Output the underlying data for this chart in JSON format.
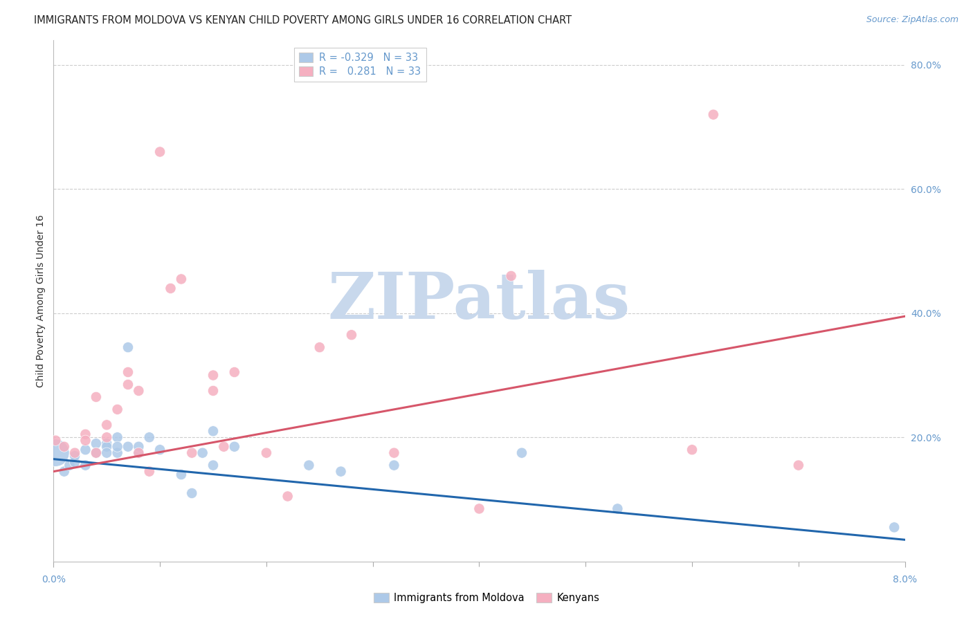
{
  "title": "IMMIGRANTS FROM MOLDOVA VS KENYAN CHILD POVERTY AMONG GIRLS UNDER 16 CORRELATION CHART",
  "source": "Source: ZipAtlas.com",
  "ylabel": "Child Poverty Among Girls Under 16",
  "xlim": [
    0,
    0.08
  ],
  "ylim": [
    0,
    0.84
  ],
  "blue_color": "#adc9e8",
  "pink_color": "#f5afc0",
  "line_blue": "#2166ac",
  "line_pink": "#d6566a",
  "background_color": "#ffffff",
  "grid_color": "#cccccc",
  "tick_color": "#6699cc",
  "blue_scatter_x": [
    0.0002,
    0.001,
    0.0015,
    0.002,
    0.002,
    0.003,
    0.003,
    0.004,
    0.004,
    0.005,
    0.005,
    0.005,
    0.006,
    0.006,
    0.006,
    0.007,
    0.007,
    0.008,
    0.008,
    0.009,
    0.01,
    0.012,
    0.013,
    0.014,
    0.015,
    0.015,
    0.017,
    0.024,
    0.027,
    0.032,
    0.044,
    0.053,
    0.079
  ],
  "blue_scatter_y": [
    0.175,
    0.145,
    0.155,
    0.16,
    0.17,
    0.18,
    0.155,
    0.19,
    0.175,
    0.19,
    0.185,
    0.175,
    0.2,
    0.175,
    0.185,
    0.185,
    0.345,
    0.175,
    0.185,
    0.2,
    0.18,
    0.14,
    0.11,
    0.175,
    0.155,
    0.21,
    0.185,
    0.155,
    0.145,
    0.155,
    0.175,
    0.085,
    0.055
  ],
  "blue_scatter_s": [
    800,
    120,
    120,
    120,
    120,
    120,
    120,
    120,
    120,
    120,
    120,
    120,
    120,
    120,
    120,
    120,
    120,
    120,
    120,
    120,
    120,
    120,
    120,
    120,
    120,
    120,
    120,
    120,
    120,
    120,
    120,
    120,
    120
  ],
  "pink_scatter_x": [
    0.0002,
    0.001,
    0.002,
    0.003,
    0.003,
    0.004,
    0.004,
    0.005,
    0.005,
    0.006,
    0.007,
    0.007,
    0.008,
    0.008,
    0.009,
    0.01,
    0.011,
    0.012,
    0.013,
    0.015,
    0.015,
    0.016,
    0.017,
    0.02,
    0.022,
    0.025,
    0.028,
    0.032,
    0.04,
    0.043,
    0.06,
    0.062,
    0.07
  ],
  "pink_scatter_y": [
    0.195,
    0.185,
    0.175,
    0.205,
    0.195,
    0.265,
    0.175,
    0.2,
    0.22,
    0.245,
    0.285,
    0.305,
    0.275,
    0.175,
    0.145,
    0.66,
    0.44,
    0.455,
    0.175,
    0.3,
    0.275,
    0.185,
    0.305,
    0.175,
    0.105,
    0.345,
    0.365,
    0.175,
    0.085,
    0.46,
    0.18,
    0.72,
    0.155
  ],
  "pink_scatter_s": [
    120,
    120,
    120,
    120,
    120,
    120,
    120,
    120,
    120,
    120,
    120,
    120,
    120,
    120,
    120,
    120,
    120,
    120,
    120,
    120,
    120,
    120,
    120,
    120,
    120,
    120,
    120,
    120,
    120,
    120,
    120,
    120,
    120
  ],
  "blue_line_x0": 0.0,
  "blue_line_y0": 0.165,
  "blue_line_x1": 0.08,
  "blue_line_y1": 0.035,
  "pink_line_x0": 0.0,
  "pink_line_y0": 0.145,
  "pink_line_x1": 0.08,
  "pink_line_y1": 0.395,
  "watermark_text": "ZIPatlas",
  "watermark_color": "#c8d8ec",
  "title_fontsize": 10.5,
  "source_fontsize": 9,
  "tick_fontsize": 10,
  "ylabel_fontsize": 10,
  "legend_fontsize": 10.5
}
